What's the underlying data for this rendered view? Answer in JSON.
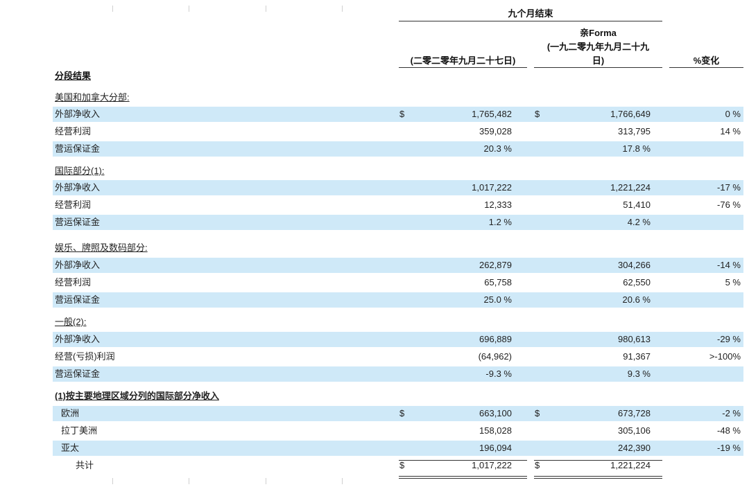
{
  "header": {
    "period": "九个月结束",
    "col1": "(二零二零年九月二十七日)",
    "col2_line1": "亲Forma",
    "col2_line2": "(一九二零九年九月二十九",
    "col2_line3": "日)",
    "col3": "%变化",
    "section_title": "分段结果"
  },
  "rows": [
    {
      "label": "美国和加拿大分部:",
      "style": "underline",
      "shaded": false,
      "d1": "",
      "v1": "",
      "d2": "",
      "v2": "",
      "pct": ""
    },
    {
      "label": "外部净收入",
      "style": "",
      "shaded": true,
      "d1": "$",
      "v1": "1,765,482",
      "d2": "$",
      "v2": "1,766,649",
      "pct": "0 %"
    },
    {
      "label": "经营利润",
      "style": "",
      "shaded": false,
      "d1": "",
      "v1": "359,028",
      "d2": "",
      "v2": "313,795",
      "pct": "14 %"
    },
    {
      "label": "营运保证金",
      "style": "",
      "shaded": true,
      "d1": "",
      "v1": "20.3 %",
      "d2": "",
      "v2": "17.8 %",
      "pct": ""
    },
    {
      "label": "国际部分(1):",
      "style": "underline",
      "shaded": false,
      "d1": "",
      "v1": "",
      "d2": "",
      "v2": "",
      "pct": ""
    },
    {
      "label": "外部净收入",
      "style": "",
      "shaded": true,
      "d1": "",
      "v1": "1,017,222",
      "d2": "",
      "v2": "1,221,224",
      "pct": "-17 %"
    },
    {
      "label": "经营利润",
      "style": "",
      "shaded": false,
      "d1": "",
      "v1": "12,333",
      "d2": "",
      "v2": "51,410",
      "pct": "-76 %"
    },
    {
      "label": "营运保证金",
      "style": "",
      "shaded": true,
      "d1": "",
      "v1": "1.2 %",
      "d2": "",
      "v2": "4.2 %",
      "pct": ""
    },
    {
      "label": "娱乐、牌照及数码部分:",
      "style": "underline",
      "shaded": false,
      "d1": "",
      "v1": "",
      "d2": "",
      "v2": "",
      "pct": ""
    },
    {
      "label": "外部净收入",
      "style": "",
      "shaded": true,
      "d1": "",
      "v1": "262,879",
      "d2": "",
      "v2": "304,266",
      "pct": "-14 %"
    },
    {
      "label": "经营利润",
      "style": "",
      "shaded": false,
      "d1": "",
      "v1": "65,758",
      "d2": "",
      "v2": "62,550",
      "pct": "5 %"
    },
    {
      "label": "营运保证金",
      "style": "",
      "shaded": true,
      "d1": "",
      "v1": "25.0 %",
      "d2": "",
      "v2": "20.6 %",
      "pct": ""
    },
    {
      "label": "一般(2):",
      "style": "underline",
      "shaded": false,
      "d1": "",
      "v1": "",
      "d2": "",
      "v2": "",
      "pct": ""
    },
    {
      "label": "外部净收入",
      "style": "",
      "shaded": true,
      "d1": "",
      "v1": "696,889",
      "d2": "",
      "v2": "980,613",
      "pct": "-29 %"
    },
    {
      "label": "经营(亏损)利润",
      "style": "",
      "shaded": false,
      "d1": "",
      "v1": "(64,962)",
      "d2": "",
      "v2": "91,367",
      "pct": ">-100%"
    },
    {
      "label": "营运保证金",
      "style": "",
      "shaded": true,
      "d1": "",
      "v1": "-9.3 %",
      "d2": "",
      "v2": "9.3 %",
      "pct": ""
    },
    {
      "label": "(1)按主要地理区域分列的国际部分净收入",
      "style": "bold-underline",
      "shaded": false,
      "d1": "",
      "v1": "",
      "d2": "",
      "v2": "",
      "pct": ""
    },
    {
      "label": "欧洲",
      "style": "indent",
      "shaded": true,
      "d1": "$",
      "v1": "663,100",
      "d2": "$",
      "v2": "673,728",
      "pct": "-2 %"
    },
    {
      "label": "拉丁美洲",
      "style": "indent",
      "shaded": false,
      "d1": "",
      "v1": "158,028",
      "d2": "",
      "v2": "305,106",
      "pct": "-48 %"
    },
    {
      "label": "亚太",
      "style": "indent",
      "shaded": true,
      "d1": "",
      "v1": "196,094",
      "d2": "",
      "v2": "242,390",
      "pct": "-19 %"
    },
    {
      "label": "共计",
      "style": "indent2",
      "shaded": false,
      "d1": "$",
      "v1": "1,017,222",
      "d2": "$",
      "v2": "1,221,224",
      "pct": ""
    }
  ]
}
